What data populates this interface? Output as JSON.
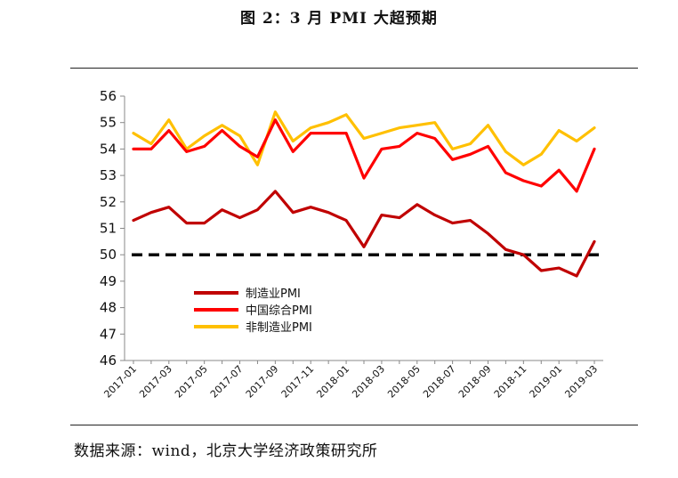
{
  "figure_title": "图 2：3 月 PMI 大超预期",
  "source_note": "数据来源：wind，北京大学经济政策研究所",
  "chart_data": {
    "type": "line",
    "title": "图 2：3 月 PMI 大超预期",
    "xlabel": "",
    "ylabel": "",
    "ylim": [
      46,
      56
    ],
    "yticks": [
      46,
      47,
      48,
      49,
      50,
      51,
      52,
      53,
      54,
      55,
      56
    ],
    "x": [
      "2017-01",
      "2017-02",
      "2017-03",
      "2017-04",
      "2017-05",
      "2017-06",
      "2017-07",
      "2017-08",
      "2017-09",
      "2017-10",
      "2017-11",
      "2017-12",
      "2018-01",
      "2018-02",
      "2018-03",
      "2018-04",
      "2018-05",
      "2018-06",
      "2018-07",
      "2018-08",
      "2018-09",
      "2018-10",
      "2018-11",
      "2018-12",
      "2019-01",
      "2019-02",
      "2019-03"
    ],
    "xtick_labels": [
      "2017-01",
      "2017-03",
      "2017-05",
      "2017-07",
      "2017-09",
      "2017-11",
      "2018-01",
      "2018-03",
      "2018-05",
      "2018-07",
      "2018-09",
      "2018-11",
      "2019-01",
      "2019-03"
    ],
    "reference_line": {
      "y": 50,
      "style": "dashed",
      "color": "#000000"
    },
    "legend_position": "lower-left",
    "series": [
      {
        "name": "制造业PMI",
        "color": "#c00000",
        "values": [
          51.3,
          51.6,
          51.8,
          51.2,
          51.2,
          51.7,
          51.4,
          51.7,
          52.4,
          51.6,
          51.8,
          51.6,
          51.3,
          50.3,
          51.5,
          51.4,
          51.9,
          51.5,
          51.2,
          51.3,
          50.8,
          50.2,
          50.0,
          49.4,
          49.5,
          49.2,
          50.5
        ]
      },
      {
        "name": "中国综合PMI",
        "color": "#ff0000",
        "values": [
          54.0,
          54.0,
          54.7,
          53.9,
          54.1,
          54.7,
          54.1,
          53.7,
          55.1,
          53.9,
          54.6,
          54.6,
          54.6,
          52.9,
          54.0,
          54.1,
          54.6,
          54.4,
          53.6,
          53.8,
          54.1,
          53.1,
          52.8,
          52.6,
          53.2,
          52.4,
          54.0
        ]
      },
      {
        "name": "非制造业PMI",
        "color": "#ffc000",
        "values": [
          54.6,
          54.2,
          55.1,
          54.0,
          54.5,
          54.9,
          54.5,
          53.4,
          55.4,
          54.3,
          54.8,
          55.0,
          55.3,
          54.4,
          54.6,
          54.8,
          54.9,
          55.0,
          54.0,
          54.2,
          54.9,
          53.9,
          53.4,
          53.8,
          54.7,
          54.3,
          54.8
        ]
      }
    ]
  }
}
